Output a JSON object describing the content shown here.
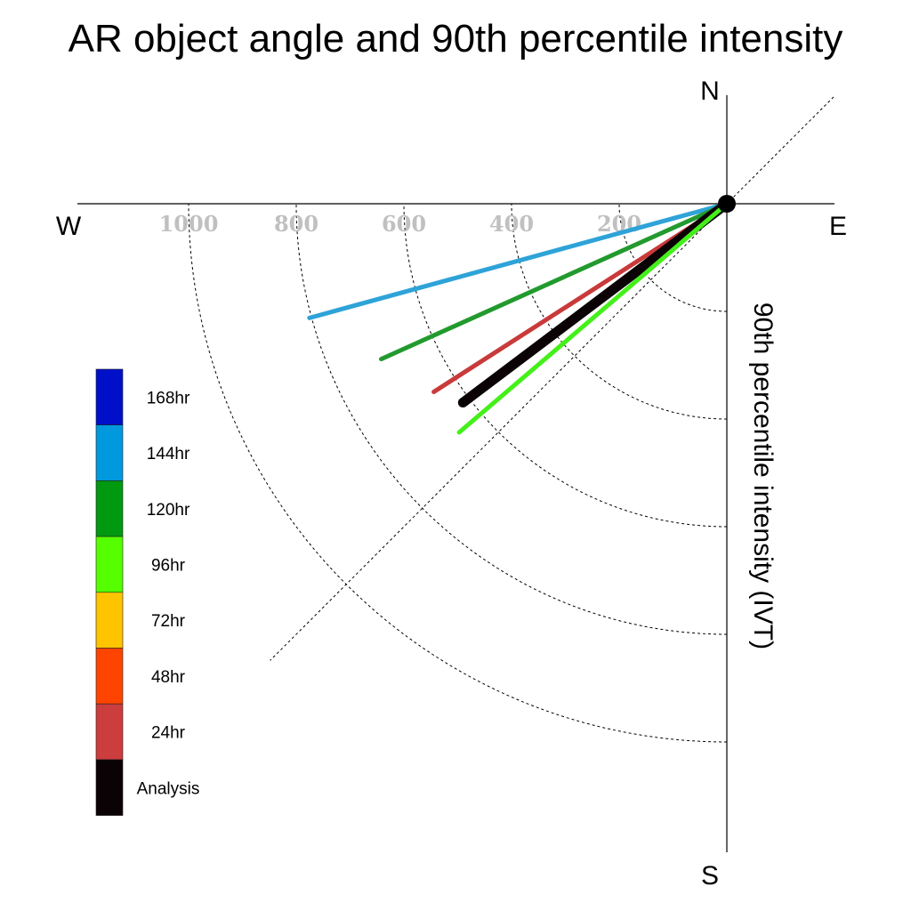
{
  "chart_data": {
    "type": "polar-vector",
    "title": "AR object angle and 90th percentile intensity",
    "ylabel": "90th percentile intensity (IVT)",
    "compass": {
      "north": "N",
      "south": "S",
      "east": "E",
      "west": "W"
    },
    "radial_ticks": [
      {
        "value": 200,
        "label": "200"
      },
      {
        "value": 400,
        "label": "400"
      },
      {
        "value": 600,
        "label": "600"
      },
      {
        "value": 800,
        "label": "800"
      },
      {
        "value": 1000,
        "label": "1000"
      }
    ],
    "rmax": 1200,
    "grid": true,
    "legend_position": "bottom-left",
    "series": [
      {
        "name": "144hr",
        "color": "#2ea3d8",
        "angle_deg": -164.7,
        "intensity": 804
      },
      {
        "name": "120hr",
        "color": "#229a2e",
        "angle_deg": -155.8,
        "intensity": 704
      },
      {
        "name": "24hr",
        "color": "#c93a3a",
        "angle_deg": -147.3,
        "intensity": 647
      },
      {
        "name": "Analysis",
        "color": "#0a0205",
        "angle_deg": -143.0,
        "intensity": 614
      },
      {
        "name": "96hr",
        "color": "#44f019",
        "angle_deg": -139.5,
        "intensity": 654
      }
    ],
    "legend": [
      {
        "label": "168hr",
        "color": "#0010c8"
      },
      {
        "label": "144hr",
        "color": "#0099dd"
      },
      {
        "label": "120hr",
        "color": "#009910"
      },
      {
        "label": "96hr",
        "color": "#55ff00"
      },
      {
        "label": "72hr",
        "color": "#ffc400"
      },
      {
        "label": "48hr",
        "color": "#ff4400"
      },
      {
        "label": "24hr",
        "color": "#cc3d3d"
      },
      {
        "label": "Analysis",
        "color": "#0a0205"
      }
    ]
  }
}
